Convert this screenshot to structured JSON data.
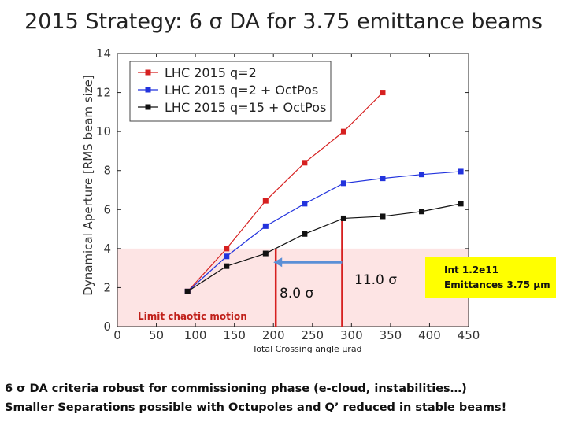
{
  "slide": {
    "title": "2015 Strategy: 6 σ DA for 3.75 emittance beams",
    "bullet_1": "6 σ DA criteria robust for commissioning phase (e-cloud, instabilities…)",
    "bullet_2": "Smaller Separations possible with Octupoles and Q’ reduced in stable beams!"
  },
  "annotations": {
    "limit_label": "Limit chaotic motion",
    "label_8": "8.0 σ",
    "label_11": "11.0 σ",
    "info_line_1": "Int 1.2e11",
    "info_line_2": "Emittances 3.75 μm"
  },
  "colors": {
    "red": "#d62020",
    "blue": "#2233dd",
    "black": "#111111",
    "limit_band": "#fde4e4",
    "arrow": "#5b8fd6",
    "infobox": "#ffff00"
  },
  "chart_data": {
    "type": "line",
    "xlabel": "Total Crossing angle μrad",
    "ylabel": "Dynamical Aperture [RMS beam size]",
    "xlim": [
      0,
      450
    ],
    "ylim": [
      0,
      14
    ],
    "xticks": [
      0,
      50,
      100,
      150,
      200,
      250,
      300,
      350,
      400,
      450
    ],
    "yticks": [
      0,
      2,
      4,
      6,
      8,
      10,
      12,
      14
    ],
    "legend_position": "top-left",
    "limit_band": [
      0,
      4
    ],
    "series": [
      {
        "name": "LHC 2015 q=2",
        "color": "#d62020",
        "x": [
          90,
          140,
          190,
          240,
          290,
          340
        ],
        "y": [
          1.8,
          4.0,
          6.45,
          8.4,
          10.0,
          12.0
        ]
      },
      {
        "name": "LHC 2015 q=2 + OctPos",
        "color": "#2233dd",
        "x": [
          90,
          140,
          190,
          240,
          290,
          340,
          390,
          440
        ],
        "y": [
          1.8,
          3.6,
          5.15,
          6.3,
          7.35,
          7.6,
          7.8,
          7.95
        ]
      },
      {
        "name": "LHC 2015 q=15 + OctPos",
        "color": "#111111",
        "x": [
          90,
          140,
          190,
          240,
          290,
          340,
          390,
          440
        ],
        "y": [
          1.8,
          3.1,
          3.75,
          4.75,
          5.55,
          5.65,
          5.9,
          6.3
        ]
      }
    ],
    "markers": [
      {
        "x": 203,
        "y_top": 4.0
      },
      {
        "x": 288,
        "y_top": 5.55
      }
    ],
    "arrow": {
      "x_from": 288,
      "x_to": 200,
      "y": 3.3
    }
  }
}
